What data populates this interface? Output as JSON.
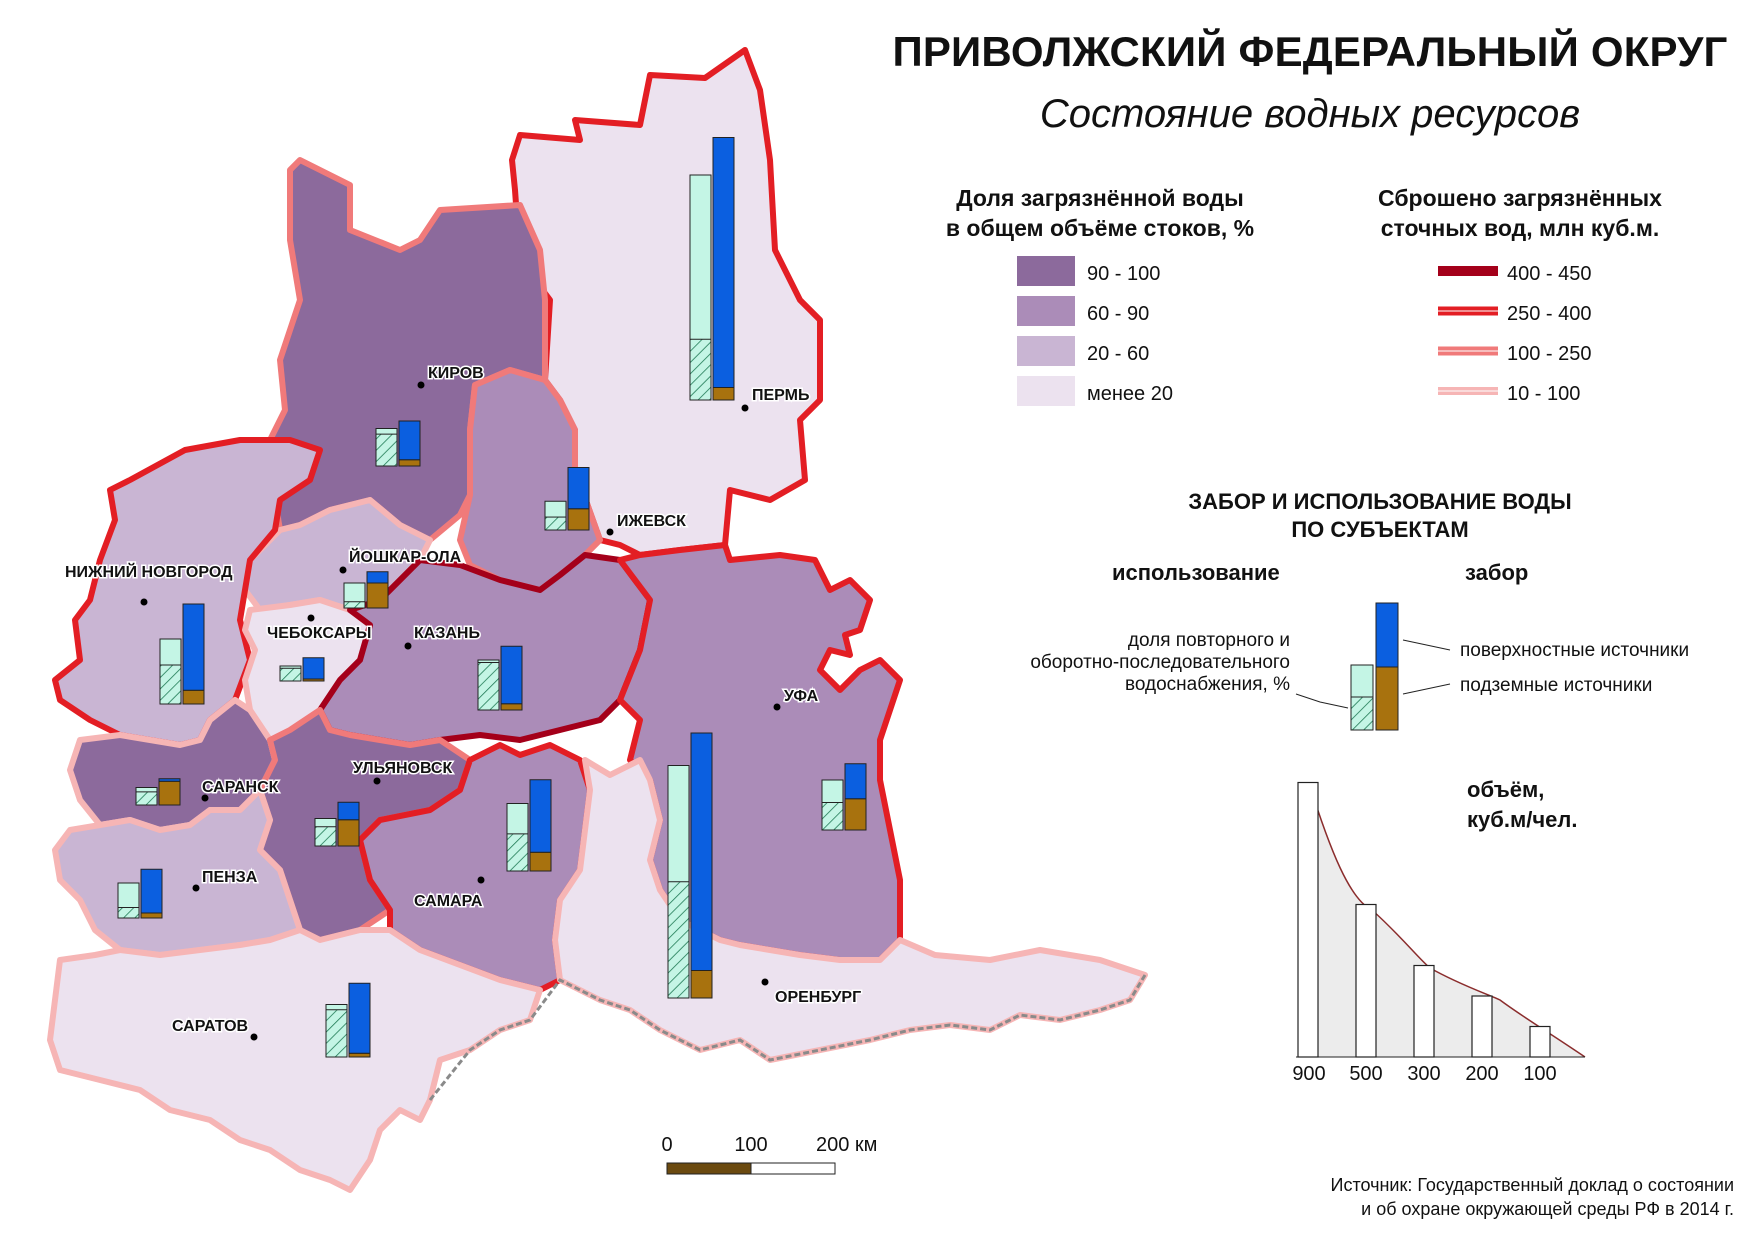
{
  "title": "ПРИВОЛЖСКИЙ ФЕДЕРАЛЬНЫЙ ОКРУГ",
  "subtitle": "Состояние водных ресурсов",
  "legend_polluted_share": {
    "title_line1": "Доля загрязнённой воды",
    "title_line2": "в общем объёме стоков, %",
    "items": [
      {
        "label": "90 - 100",
        "color": "#8c6a9c"
      },
      {
        "label": "60 - 90",
        "color": "#ab8cb8"
      },
      {
        "label": "20 - 60",
        "color": "#c9b5d3"
      },
      {
        "label": "менее 20",
        "color": "#ece2ef"
      }
    ]
  },
  "legend_discharge": {
    "title_line1": "Сброшено загрязнённых",
    "title_line2": "сточных вод, млн куб.м.",
    "items": [
      {
        "label": "400 - 450",
        "color": "#a4001a"
      },
      {
        "label": "250 - 400",
        "color": "#e31e24"
      },
      {
        "label": "100 - 250",
        "color": "#f07a7a"
      },
      {
        "label": "10 - 100",
        "color": "#f6b5b5"
      }
    ]
  },
  "legend_intake": {
    "title_line1": "ЗАБОР И ИСПОЛЬЗОВАНИЕ ВОДЫ",
    "title_line2": "ПО СУБЪЕКТАМ",
    "use_label": "использование",
    "intake_label": "забор",
    "reuse_line1": "доля повторного и",
    "reuse_line2": "оборотно-последовательного",
    "reuse_line3": "водоснабжения, %",
    "surface_label": "поверхностные источники",
    "underground_label": "подземные источники",
    "colors": {
      "surface": "#0b5fe0",
      "underground": "#a8720e",
      "use": "#c4f5e5",
      "reuse_hatch": "#1f7a55"
    }
  },
  "volume_scale": {
    "title_line1": "объём,",
    "title_line2": "куб.м/чел.",
    "values": [
      900,
      500,
      300,
      200,
      100
    ],
    "labels": [
      "900",
      "500",
      "300",
      "200",
      "100"
    ]
  },
  "scale_bar": {
    "labels": [
      "0",
      "100",
      "200 км"
    ]
  },
  "source": {
    "line1": "Источник: Государственный доклад о состоянии",
    "line2": "и об охране окружающей среды РФ в 2014 г."
  },
  "cities": {
    "kirov": "КИРОВ",
    "perm": "ПЕРМЬ",
    "izhevsk": "ИЖЕВСК",
    "yoshkar_ola": "ЙОШКАР-ОЛА",
    "nizhny": "НИЖНИЙ НОВГОРОД",
    "cheboksary": "ЧЕБОКСАРЫ",
    "kazan": "КАЗАНЬ",
    "ufa": "УФА",
    "saransk": "САРАНСК",
    "ulyanovsk": "УЛЬЯНОВСК",
    "penza": "ПЕНЗА",
    "samara": "САМАРА",
    "orenburg": "ОРЕНБУРГ",
    "saratov": "САРАТОВ"
  },
  "region_diagrams": [
    {
      "region": "Пермь",
      "use": 900,
      "reuse_share": 0.27,
      "surface": 1000,
      "underground": 50
    },
    {
      "region": "Киров",
      "use": 150,
      "reuse_share": 0.85,
      "surface": 155,
      "underground": 25
    },
    {
      "region": "Ижевск",
      "use": 115,
      "reuse_share": 0.45,
      "surface": 165,
      "underground": 85
    },
    {
      "region": "Йошкар-Ола",
      "use": 100,
      "reuse_share": 0.25,
      "surface": 45,
      "underground": 100
    },
    {
      "region": "Нижний Новгород",
      "use": 260,
      "reuse_share": 0.6,
      "surface": 345,
      "underground": 55
    },
    {
      "region": "Чебоксары",
      "use": 60,
      "reuse_share": 0.85,
      "surface": 85,
      "underground": 8
    },
    {
      "region": "Казань",
      "use": 200,
      "reuse_share": 0.95,
      "surface": 230,
      "underground": 25
    },
    {
      "region": "Уфа",
      "use": 200,
      "reuse_share": 0.55,
      "surface": 140,
      "underground": 125
    },
    {
      "region": "Саранск",
      "use": 70,
      "reuse_share": 0.75,
      "surface": 10,
      "underground": 95
    },
    {
      "region": "Ульяновск",
      "use": 110,
      "reuse_share": 0.7,
      "surface": 70,
      "underground": 105
    },
    {
      "region": "Пенза",
      "use": 140,
      "reuse_share": 0.3,
      "surface": 175,
      "underground": 20
    },
    {
      "region": "Самара",
      "use": 270,
      "reuse_share": 0.55,
      "surface": 290,
      "underground": 75
    },
    {
      "region": "Оренбург",
      "use": 930,
      "reuse_share": 0.5,
      "surface": 950,
      "underground": 110
    },
    {
      "region": "Саратов",
      "use": 210,
      "reuse_share": 0.9,
      "surface": 280,
      "underground": 15
    }
  ]
}
